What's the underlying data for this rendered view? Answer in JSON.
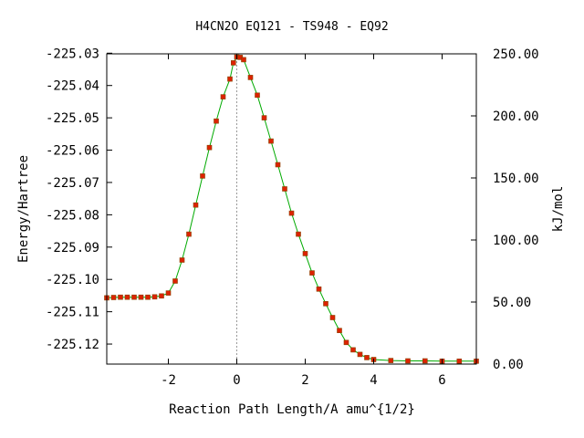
{
  "chart_data": {
    "type": "line",
    "title": "H4CN2O   EQ121 - TS948 - EQ92",
    "xlabel": "Reaction Path Length/A amu^{1/2}",
    "ylabel": "Energy/Hartree",
    "y2label": "kJ/mol",
    "xlim": [
      -3.8,
      7.0
    ],
    "ylim": [
      -225.1262,
      -225.0302
    ],
    "y2lim": [
      0,
      250
    ],
    "x_ticks": [
      -2,
      0,
      2,
      4,
      6
    ],
    "x_tick_labels": [
      "-2",
      "0",
      "2",
      "4",
      "6"
    ],
    "y_ticks": [
      -225.03,
      -225.04,
      -225.05,
      -225.06,
      -225.07,
      -225.08,
      -225.09,
      -225.1,
      -225.11,
      -225.12
    ],
    "y_tick_labels": [
      "-225.03",
      "-225.04",
      "-225.05",
      "-225.06",
      "-225.07",
      "-225.08",
      "-225.09",
      "-225.10",
      "-225.11",
      "-225.12"
    ],
    "y2_ticks": [
      0,
      50,
      100,
      150,
      200,
      250
    ],
    "y2_tick_labels": [
      "0.00",
      "50.00",
      "100.00",
      "150.00",
      "200.00",
      "250.00"
    ],
    "ts_marker_x": 0.0,
    "grid": false,
    "legend": "none",
    "colors": {
      "line": "#00aa00",
      "marker": "#dd2200",
      "marker_edge": "#884400",
      "ts_line": "#999999",
      "axis": "#000000"
    },
    "series": [
      {
        "x": [
          -3.8,
          -3.6,
          -3.4,
          -3.2,
          -3.0,
          -2.8,
          -2.6,
          -2.4,
          -2.2,
          -2.0,
          -1.8,
          -1.6,
          -1.4,
          -1.2,
          -1.0,
          -0.8,
          -0.6,
          -0.4,
          -0.2,
          -0.1,
          0.0,
          0.1,
          0.2,
          0.4,
          0.6,
          0.8,
          1.0,
          1.2,
          1.4,
          1.6,
          1.8,
          2.0,
          2.2,
          2.4,
          2.6,
          2.8,
          3.0,
          3.2,
          3.4,
          3.6,
          3.8,
          4.0,
          4.5,
          5.0,
          5.5,
          6.0,
          6.5,
          7.0
        ],
        "y": [
          -225.1057,
          -225.1056,
          -225.1055,
          -225.1055,
          -225.1055,
          -225.1055,
          -225.1055,
          -225.1054,
          -225.1051,
          -225.1042,
          -225.1005,
          -225.094,
          -225.086,
          -225.077,
          -225.068,
          -225.0592,
          -225.051,
          -225.0435,
          -225.038,
          -225.033,
          -225.0312,
          -225.0313,
          -225.032,
          -225.0375,
          -225.043,
          -225.05,
          -225.0572,
          -225.0645,
          -225.072,
          -225.0795,
          -225.086,
          -225.092,
          -225.098,
          -225.103,
          -225.1075,
          -225.1118,
          -225.1158,
          -225.1195,
          -225.1218,
          -225.1232,
          -225.1242,
          -225.1248,
          -225.1251,
          -225.1252,
          -225.1252,
          -225.1253,
          -225.1253,
          -225.1253
        ]
      }
    ]
  }
}
